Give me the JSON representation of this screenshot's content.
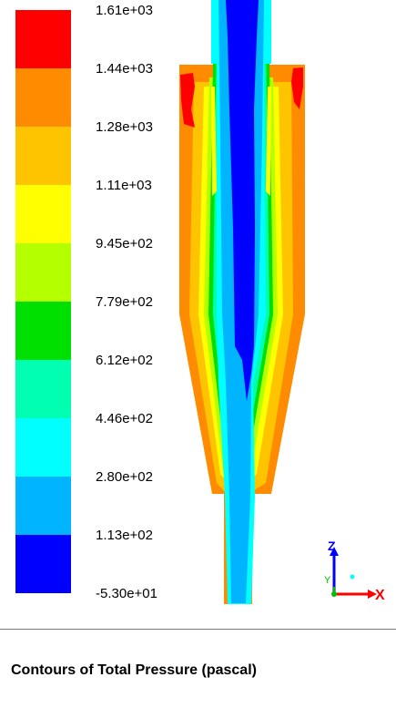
{
  "legend": {
    "labels": [
      "1.61e+03",
      "1.44e+03",
      "1.28e+03",
      "1.11e+03",
      "9.45e+02",
      "7.79e+02",
      "6.12e+02",
      "4.46e+02",
      "2.80e+02",
      "1.13e+02",
      "-5.30e+01"
    ],
    "band_colors": [
      "#ff0000",
      "#ff8c00",
      "#ffc400",
      "#ffff00",
      "#b4ff00",
      "#00e000",
      "#00ffb0",
      "#00ffff",
      "#00b4ff",
      "#0000ff"
    ]
  },
  "field_colors": {
    "blue": "#0000ff",
    "lightblue": "#00b4ff",
    "cyan": "#00ffff",
    "aqua": "#00ffb0",
    "green": "#00e000",
    "lime": "#b4ff00",
    "yellow": "#ffff00",
    "gold": "#ffc400",
    "orange": "#ff8c00",
    "red": "#ff0000"
  },
  "axes": {
    "z_label": "Z",
    "y_label": "Y",
    "x_label": "X",
    "z_color": "#0000ff",
    "y_color": "#00c000",
    "x_color": "#ff0000"
  },
  "caption": "Contours of Total Pressure (pascal)"
}
